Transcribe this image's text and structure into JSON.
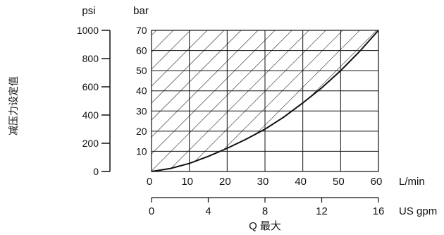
{
  "chart_data": {
    "type": "area",
    "ylabel": "减压力设定值",
    "xlabel": "Q 最大",
    "left_axis": {
      "unit": "psi",
      "range": [
        0,
        1000
      ],
      "ticks": [
        "0",
        "200",
        "400",
        "600",
        "800",
        "1000"
      ]
    },
    "right_axis": {
      "unit": "bar",
      "range": [
        0,
        70
      ],
      "ticks": [
        "10",
        "20",
        "30",
        "40",
        "50",
        "60",
        "70"
      ]
    },
    "x_axis_primary": {
      "unit": "L/min",
      "range": [
        0,
        60
      ],
      "ticks": [
        "0",
        "10",
        "20",
        "30",
        "40",
        "50",
        "60"
      ]
    },
    "x_axis_secondary": {
      "unit": "US gpm",
      "range": [
        0,
        16
      ],
      "ticks": [
        "0",
        "4",
        "8",
        "12",
        "16"
      ]
    },
    "grid": true,
    "fill": "hatched region above curve",
    "series": [
      {
        "x": [
          0,
          5,
          10,
          15,
          20,
          25,
          30,
          35,
          40,
          45,
          50,
          55,
          60
        ],
        "y": [
          0,
          1.5,
          4,
          7.5,
          11.5,
          16,
          21,
          27,
          34,
          41.5,
          50,
          59.5,
          70
        ]
      }
    ]
  }
}
